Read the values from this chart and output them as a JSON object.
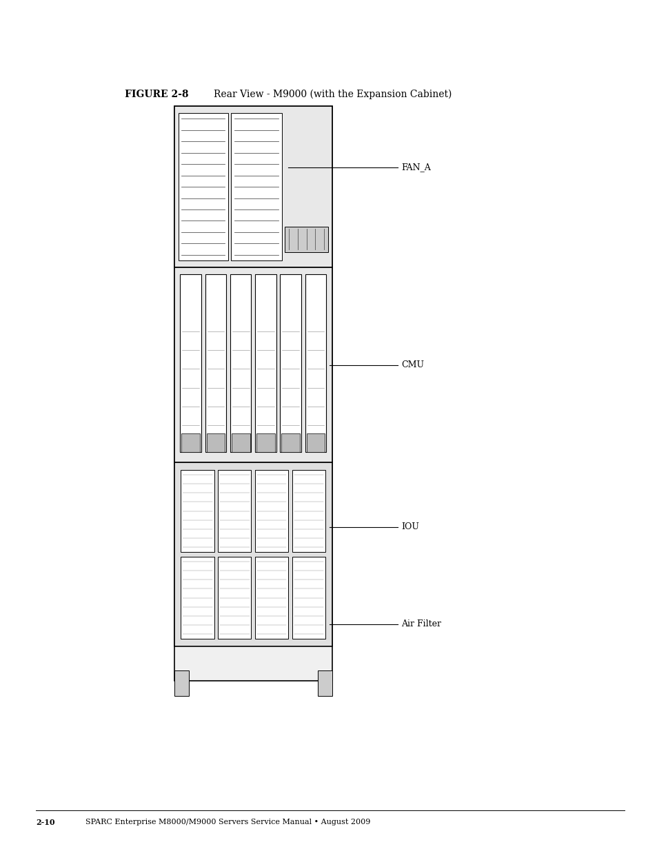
{
  "figure_label": "FIGURE 2-8",
  "figure_title": "Rear View - M9000 (with the Expansion Cabinet)",
  "footer_left": "2-10",
  "footer_right": "SPARC Enterprise M8000/M9000 Servers Service Manual • August 2009",
  "labels": [
    "FAN_A",
    "CMU",
    "IOU",
    "Air Filter"
  ],
  "line_color": "#000000",
  "bg_color": "#ffffff",
  "text_color": "#000000",
  "font_size_title": 10,
  "font_size_label": 9,
  "font_size_footer": 8
}
